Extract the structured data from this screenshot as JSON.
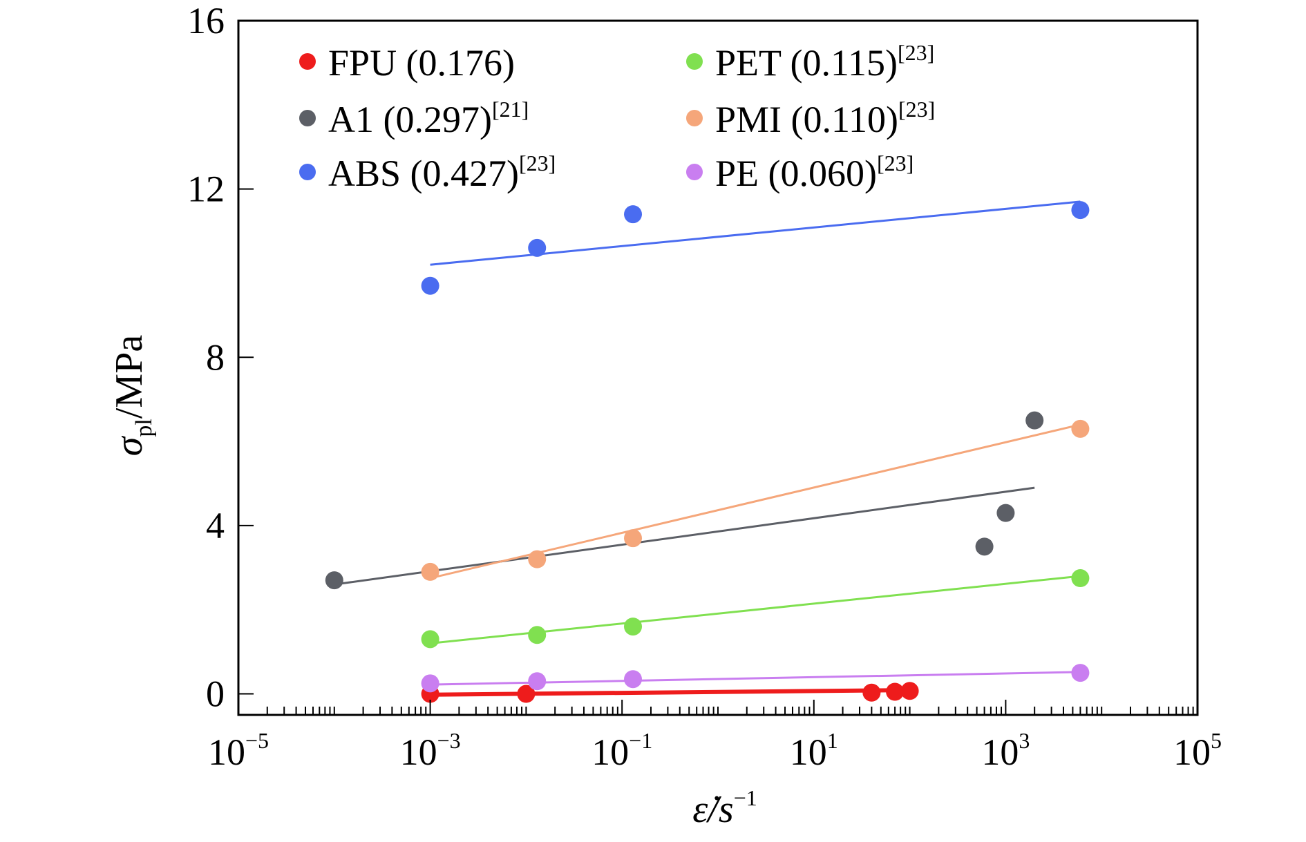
{
  "chart_data": {
    "type": "scatter",
    "xscale": "log",
    "xlim": [
      1e-05,
      100000
    ],
    "ylim": [
      -0.5,
      16
    ],
    "x_ticks": [
      {
        "value": 1e-05,
        "base": "10",
        "exp": "−5"
      },
      {
        "value": 0.001,
        "base": "10",
        "exp": "−3"
      },
      {
        "value": 0.1,
        "base": "10",
        "exp": "−1"
      },
      {
        "value": 10,
        "base": "10",
        "exp": "1"
      },
      {
        "value": 1000,
        "base": "10",
        "exp": "3"
      },
      {
        "value": 100000,
        "base": "10",
        "exp": "5"
      }
    ],
    "y_ticks": [
      {
        "value": 0,
        "label": "0"
      },
      {
        "value": 4,
        "label": "4"
      },
      {
        "value": 8,
        "label": "8"
      },
      {
        "value": 12,
        "label": "12"
      },
      {
        "value": 16,
        "label": "16"
      }
    ],
    "xlabel": {
      "main": "ε̇/s",
      "sup": "−1"
    },
    "ylabel": {
      "main": "σ",
      "sub": "pl",
      "tail": "/MPa"
    },
    "grid": false,
    "legend_position": "top",
    "series": [
      {
        "name": "FPU (0.176)",
        "ref": "",
        "color": "#ee1c1c",
        "points": [
          [
            0.001,
            0.0
          ],
          [
            0.01,
            0.0
          ],
          [
            40,
            0.03
          ],
          [
            70,
            0.05
          ],
          [
            100,
            0.07
          ]
        ],
        "fit": [
          [
            0.001,
            -0.02
          ],
          [
            100,
            0.09
          ]
        ]
      },
      {
        "name": "A1 (0.297)",
        "ref": "[21]",
        "color": "#5c5f66",
        "points": [
          [
            0.0001,
            2.7
          ],
          [
            600,
            3.5
          ],
          [
            1000,
            4.3
          ],
          [
            2000,
            6.5
          ]
        ],
        "fit": [
          [
            0.0001,
            2.6
          ],
          [
            2000,
            4.9
          ]
        ]
      },
      {
        "name": "ABS (0.427)",
        "ref": "[23]",
        "color": "#4a6cf0",
        "points": [
          [
            0.001,
            9.7
          ],
          [
            0.013,
            10.6
          ],
          [
            0.13,
            11.4
          ],
          [
            6000,
            11.5
          ]
        ],
        "fit": [
          [
            0.001,
            10.2
          ],
          [
            6000,
            11.7
          ]
        ]
      },
      {
        "name": "PET (0.115)",
        "ref": "[23]",
        "color": "#80e050",
        "points": [
          [
            0.001,
            1.3
          ],
          [
            0.013,
            1.4
          ],
          [
            0.13,
            1.6
          ],
          [
            6000,
            2.75
          ]
        ],
        "fit": [
          [
            0.001,
            1.2
          ],
          [
            6000,
            2.8
          ]
        ]
      },
      {
        "name": "PMI (0.110)",
        "ref": "[23]",
        "color": "#f5a67a",
        "points": [
          [
            0.001,
            2.9
          ],
          [
            0.013,
            3.2
          ],
          [
            0.13,
            3.7
          ],
          [
            6000,
            6.3
          ]
        ],
        "fit": [
          [
            0.001,
            2.75
          ],
          [
            6000,
            6.4
          ]
        ]
      },
      {
        "name": "PE (0.060)",
        "ref": "[23]",
        "color": "#c97ef0",
        "points": [
          [
            0.001,
            0.25
          ],
          [
            0.013,
            0.3
          ],
          [
            0.13,
            0.35
          ],
          [
            6000,
            0.5
          ]
        ],
        "fit": [
          [
            0.001,
            0.22
          ],
          [
            6000,
            0.52
          ]
        ]
      }
    ]
  }
}
